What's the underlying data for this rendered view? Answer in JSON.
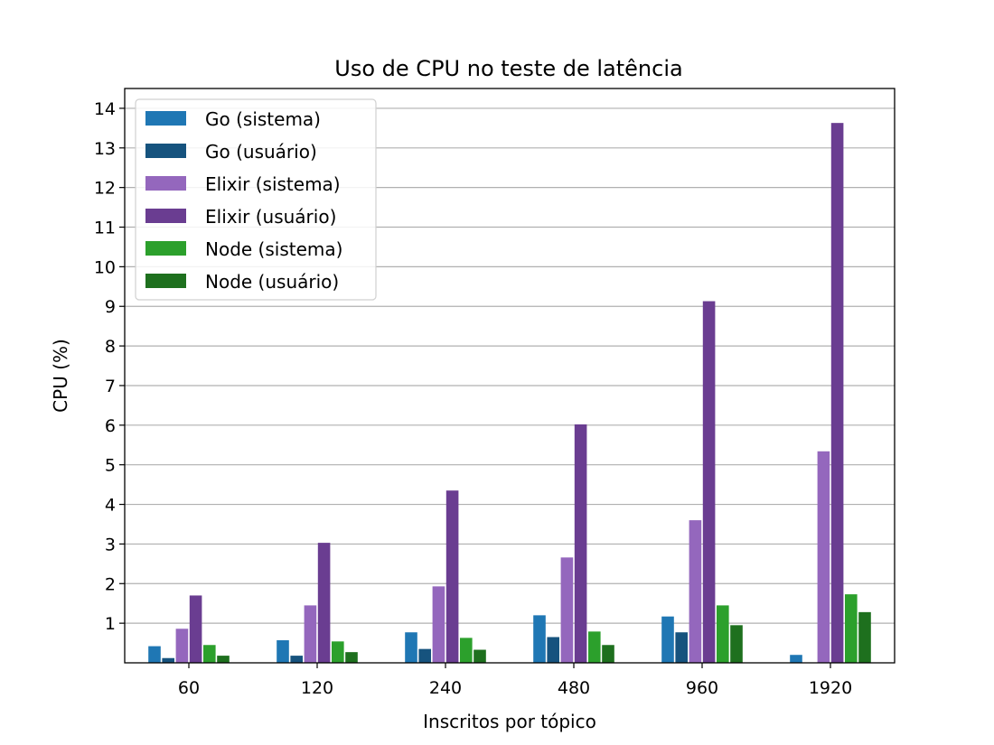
{
  "chart_data": {
    "type": "bar",
    "title": "Uso de CPU no teste de latência",
    "xlabel": "Inscritos por tópico",
    "ylabel": "CPU (%)",
    "categories": [
      "60",
      "120",
      "240",
      "480",
      "960",
      "1920"
    ],
    "ylim": [
      0,
      14.5
    ],
    "yticks": [
      1,
      2,
      3,
      4,
      5,
      6,
      7,
      8,
      9,
      10,
      11,
      12,
      13,
      14
    ],
    "grid": "horizontal",
    "legend_position": "top-left",
    "series": [
      {
        "name": "Go (sistema)",
        "color": "#1f77b4",
        "values": [
          0.42,
          0.57,
          0.77,
          1.2,
          1.17,
          0.2
        ]
      },
      {
        "name": "Go (usuário)",
        "color": "#16537e",
        "values": [
          0.12,
          0.18,
          0.35,
          0.65,
          0.77,
          0.0
        ]
      },
      {
        "name": "Elixir (sistema)",
        "color": "#9467bd",
        "values": [
          0.86,
          1.45,
          1.93,
          2.66,
          3.6,
          5.34
        ]
      },
      {
        "name": "Elixir (usuário)",
        "color": "#6a3d91",
        "values": [
          1.7,
          3.03,
          4.35,
          6.02,
          9.13,
          13.63
        ]
      },
      {
        "name": "Node (sistema)",
        "color": "#2ca02c",
        "values": [
          0.45,
          0.54,
          0.63,
          0.79,
          1.45,
          1.73
        ]
      },
      {
        "name": "Node (usuário)",
        "color": "#1e701e",
        "values": [
          0.18,
          0.27,
          0.33,
          0.45,
          0.95,
          1.28
        ]
      }
    ]
  }
}
